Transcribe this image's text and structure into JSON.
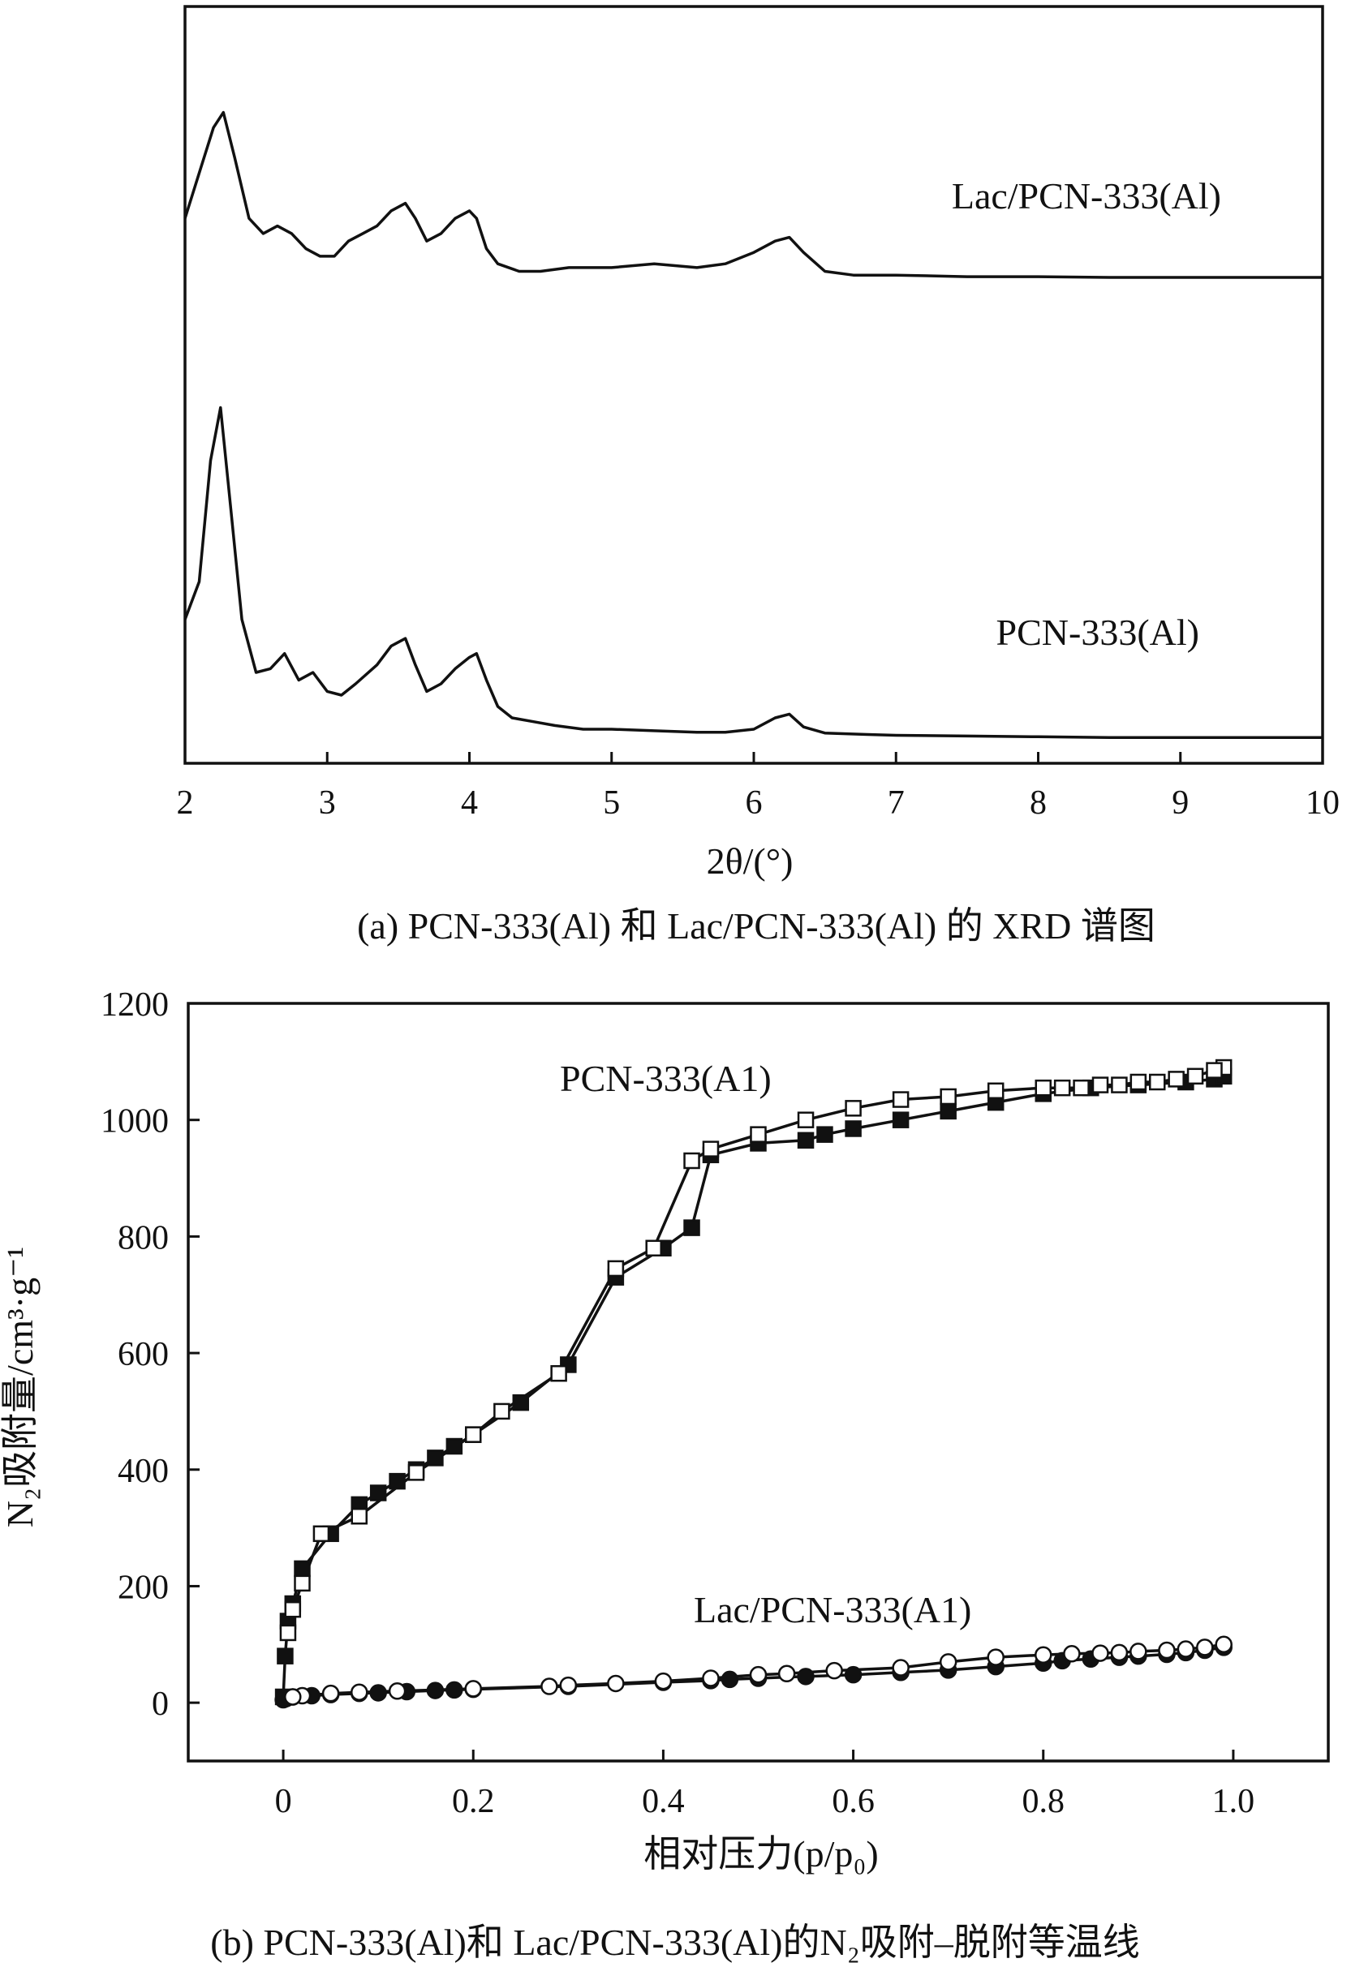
{
  "captions": {
    "a": "(a) PCN-333(Al) 和 Lac/PCN-333(Al) 的 XRD 谱图",
    "b": "(b) PCN-333(Al)和 Lac/PCN-333(Al)的N₂吸附–脱附等温线"
  },
  "colors": {
    "line": "#111111",
    "background": "#ffffff"
  },
  "chart_data": [
    {
      "type": "line",
      "id": "xrd",
      "xlabel": "2θ/(°)",
      "ylabel": "",
      "xlim": [
        2,
        10
      ],
      "xticks": [
        "2",
        "3",
        "4",
        "5",
        "6",
        "7",
        "8",
        "9",
        "10"
      ],
      "yticks_shown": false,
      "series": [
        {
          "name": "Lac/PCN-333(Al)",
          "x": [
            2.0,
            2.1,
            2.2,
            2.27,
            2.35,
            2.45,
            2.55,
            2.65,
            2.75,
            2.85,
            2.95,
            3.05,
            3.15,
            3.25,
            3.35,
            3.45,
            3.55,
            3.62,
            3.7,
            3.8,
            3.9,
            4.0,
            4.05,
            4.12,
            4.2,
            4.35,
            4.5,
            4.7,
            5.0,
            5.3,
            5.6,
            5.8,
            6.0,
            6.15,
            6.25,
            6.35,
            6.5,
            6.7,
            7.0,
            7.5,
            8.0,
            8.5,
            9.0,
            9.5,
            10.0
          ],
          "y": [
            0.72,
            0.78,
            0.84,
            0.86,
            0.8,
            0.72,
            0.7,
            0.71,
            0.7,
            0.68,
            0.67,
            0.67,
            0.69,
            0.7,
            0.71,
            0.73,
            0.74,
            0.72,
            0.69,
            0.7,
            0.72,
            0.73,
            0.72,
            0.68,
            0.66,
            0.65,
            0.65,
            0.655,
            0.655,
            0.66,
            0.655,
            0.66,
            0.675,
            0.69,
            0.695,
            0.675,
            0.65,
            0.645,
            0.645,
            0.643,
            0.643,
            0.642,
            0.642,
            0.642,
            0.642
          ]
        },
        {
          "name": "PCN-333(Al)",
          "x": [
            2.0,
            2.1,
            2.18,
            2.25,
            2.32,
            2.4,
            2.5,
            2.6,
            2.7,
            2.8,
            2.9,
            3.0,
            3.1,
            3.2,
            3.35,
            3.45,
            3.55,
            3.62,
            3.7,
            3.8,
            3.9,
            4.0,
            4.05,
            4.12,
            4.2,
            4.3,
            4.45,
            4.6,
            4.8,
            5.0,
            5.3,
            5.6,
            5.8,
            6.0,
            6.15,
            6.25,
            6.35,
            6.5,
            6.8,
            7.0,
            7.5,
            8.0,
            8.5,
            9.0,
            9.5,
            10.0
          ],
          "y": [
            0.19,
            0.24,
            0.4,
            0.47,
            0.34,
            0.19,
            0.12,
            0.125,
            0.145,
            0.11,
            0.12,
            0.095,
            0.09,
            0.105,
            0.13,
            0.155,
            0.165,
            0.13,
            0.095,
            0.105,
            0.125,
            0.14,
            0.145,
            0.11,
            0.075,
            0.06,
            0.055,
            0.05,
            0.045,
            0.045,
            0.043,
            0.041,
            0.041,
            0.045,
            0.06,
            0.065,
            0.048,
            0.04,
            0.038,
            0.037,
            0.036,
            0.035,
            0.034,
            0.034,
            0.034,
            0.034
          ]
        }
      ]
    },
    {
      "type": "scatter",
      "id": "isotherm",
      "xlabel": "相对压力(p/p₀)",
      "ylabel": "N₂吸附量/cm³·g⁻¹",
      "xlim": [
        -0.1,
        1.1
      ],
      "ylim": [
        -100,
        1200
      ],
      "xticks": [
        "0",
        "0.2",
        "0.4",
        "0.6",
        "0.8",
        "1.0"
      ],
      "yticks": [
        "0",
        "200",
        "400",
        "600",
        "800",
        "1000",
        "1200"
      ],
      "series": [
        {
          "name": "PCN-333(A1)",
          "label": "PCN-333(A1)",
          "marker": "square",
          "adsorption": {
            "x": [
              0.0,
              0.002,
              0.005,
              0.01,
              0.02,
              0.05,
              0.08,
              0.1,
              0.12,
              0.14,
              0.16,
              0.18,
              0.2,
              0.25,
              0.3,
              0.35,
              0.4,
              0.43,
              0.45,
              0.5,
              0.55,
              0.57,
              0.6,
              0.65,
              0.7,
              0.75,
              0.8,
              0.85,
              0.9,
              0.95,
              0.98,
              0.99
            ],
            "y": [
              10,
              80,
              140,
              170,
              230,
              290,
              340,
              360,
              380,
              400,
              420,
              440,
              460,
              515,
              580,
              730,
              780,
              815,
              940,
              960,
              965,
              975,
              985,
              1000,
              1015,
              1030,
              1045,
              1055,
              1060,
              1065,
              1070,
              1075
            ]
          },
          "desorption": {
            "x": [
              0.99,
              0.98,
              0.96,
              0.94,
              0.92,
              0.9,
              0.88,
              0.86,
              0.84,
              0.82,
              0.8,
              0.75,
              0.7,
              0.65,
              0.6,
              0.55,
              0.5,
              0.45,
              0.43,
              0.39,
              0.35,
              0.29,
              0.23,
              0.2,
              0.14,
              0.08,
              0.04,
              0.02,
              0.01,
              0.005
            ],
            "y": [
              1090,
              1085,
              1075,
              1070,
              1065,
              1065,
              1060,
              1060,
              1055,
              1055,
              1055,
              1050,
              1040,
              1035,
              1020,
              1000,
              975,
              950,
              930,
              780,
              745,
              565,
              500,
              460,
              395,
              320,
              290,
              205,
              160,
              120
            ]
          }
        },
        {
          "name": "Lac/PCN-333(A1)",
          "label": "Lac/PCN-333(A1)",
          "marker": "circle",
          "adsorption": {
            "x": [
              0.0,
              0.003,
              0.01,
              0.03,
              0.05,
              0.08,
              0.1,
              0.13,
              0.16,
              0.18,
              0.2,
              0.3,
              0.4,
              0.45,
              0.47,
              0.5,
              0.55,
              0.6,
              0.65,
              0.7,
              0.75,
              0.8,
              0.82,
              0.85,
              0.88,
              0.9,
              0.93,
              0.95,
              0.97,
              0.99
            ],
            "y": [
              5,
              7,
              10,
              12,
              14,
              16,
              17,
              19,
              21,
              22,
              23,
              28,
              35,
              38,
              40,
              42,
              45,
              48,
              52,
              56,
              62,
              68,
              72,
              75,
              78,
              80,
              83,
              86,
              90,
              95
            ]
          },
          "desorption": {
            "x": [
              0.99,
              0.97,
              0.95,
              0.93,
              0.9,
              0.88,
              0.86,
              0.83,
              0.8,
              0.75,
              0.7,
              0.65,
              0.58,
              0.53,
              0.5,
              0.45,
              0.4,
              0.35,
              0.3,
              0.28,
              0.2,
              0.12,
              0.08,
              0.05,
              0.02,
              0.01
            ],
            "y": [
              100,
              95,
              92,
              90,
              88,
              86,
              85,
              84,
              82,
              78,
              70,
              60,
              55,
              50,
              48,
              42,
              37,
              33,
              30,
              28,
              24,
              20,
              18,
              16,
              12,
              10
            ]
          }
        }
      ]
    }
  ]
}
